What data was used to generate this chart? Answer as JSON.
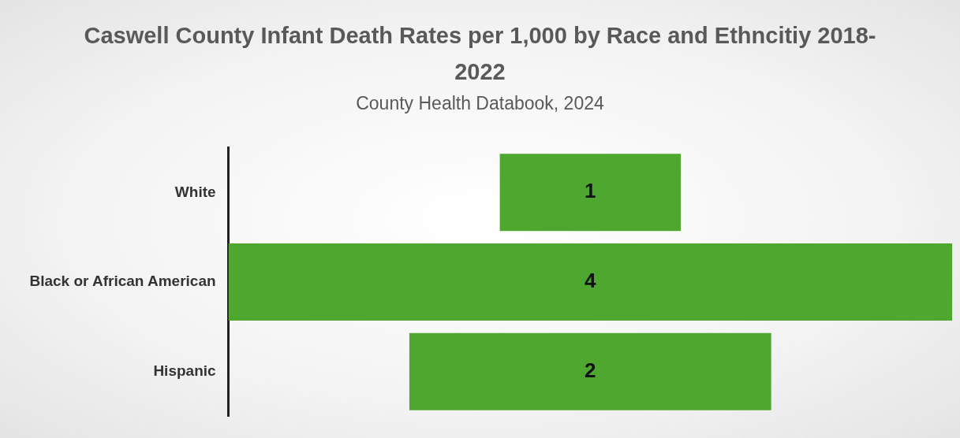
{
  "chart_data": {
    "type": "other",
    "title": "Caswell County Infant Death Rates per 1,000 by Race and Ethncitiy 2018-2022",
    "subtitle": "County Health Databook, 2024",
    "categories": [
      "White",
      "Black or African American",
      "Hispanic"
    ],
    "values": [
      1,
      4,
      2
    ],
    "color": "#4ea72e",
    "data_labels": true
  }
}
